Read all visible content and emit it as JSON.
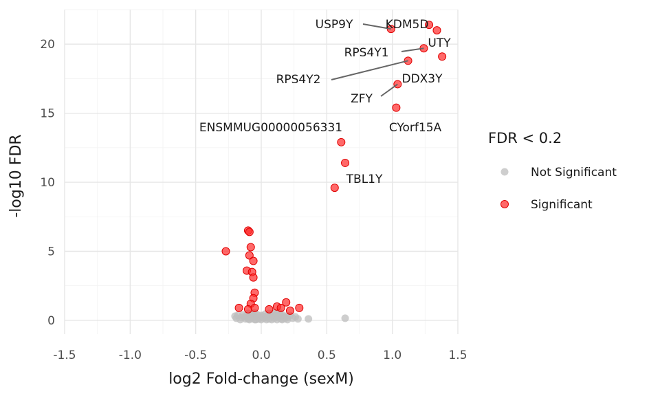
{
  "chart_data": {
    "type": "scatter",
    "title": "",
    "xlabel": "log2 Fold-change (sexM)",
    "ylabel": "-log10 FDR",
    "xlim": [
      -1.5,
      1.5
    ],
    "ylim": [
      -1,
      22.5
    ],
    "x_ticks": [
      -1.5,
      -1.0,
      -0.5,
      0.0,
      0.5,
      1.0,
      1.5
    ],
    "x_tick_labels": [
      "-1.5",
      "-1.0",
      "-0.5",
      "0.0",
      "0.5",
      "1.0",
      "1.5"
    ],
    "y_ticks": [
      0,
      5,
      10,
      15,
      20
    ],
    "y_tick_labels": [
      "0",
      "5",
      "10",
      "15",
      "20"
    ],
    "grid": true,
    "legend": {
      "title": "FDR < 0.2",
      "placement": "right",
      "entries": [
        {
          "label": "Not Significant",
          "color": "#bebebe"
        },
        {
          "label": "Significant",
          "color": "#ff2a2a"
        }
      ]
    },
    "series": [
      {
        "name": "Not Significant",
        "color": "#bebebe",
        "points": [
          [
            -0.2,
            0.3
          ],
          [
            -0.18,
            0.35
          ],
          [
            -0.15,
            0.2
          ],
          [
            -0.14,
            0.4
          ],
          [
            -0.12,
            0.1
          ],
          [
            -0.11,
            0.3
          ],
          [
            -0.1,
            0.5
          ],
          [
            -0.09,
            0.2
          ],
          [
            -0.08,
            0.35
          ],
          [
            -0.07,
            0.15
          ],
          [
            -0.06,
            0.3
          ],
          [
            -0.05,
            0.05
          ],
          [
            -0.04,
            0.25
          ],
          [
            -0.03,
            0.4
          ],
          [
            -0.02,
            0.1
          ],
          [
            -0.01,
            0.2
          ],
          [
            0.0,
            0.05
          ],
          [
            0.01,
            0.3
          ],
          [
            0.02,
            0.15
          ],
          [
            0.03,
            0.45
          ],
          [
            0.04,
            0.2
          ],
          [
            0.05,
            0.35
          ],
          [
            0.06,
            0.1
          ],
          [
            0.07,
            0.4
          ],
          [
            0.08,
            0.25
          ],
          [
            0.09,
            0.5
          ],
          [
            0.1,
            0.15
          ],
          [
            0.11,
            0.3
          ],
          [
            0.12,
            0.45
          ],
          [
            0.13,
            0.2
          ],
          [
            0.14,
            0.35
          ],
          [
            0.15,
            0.1
          ],
          [
            0.16,
            0.4
          ],
          [
            0.17,
            0.25
          ],
          [
            0.18,
            0.15
          ],
          [
            0.19,
            0.3
          ],
          [
            0.2,
            0.2
          ],
          [
            0.22,
            0.35
          ],
          [
            0.24,
            0.15
          ],
          [
            0.26,
            0.25
          ],
          [
            0.28,
            0.1
          ],
          [
            -0.16,
            0.05
          ],
          [
            -0.13,
            0.25
          ],
          [
            -0.1,
            0.1
          ],
          [
            -0.07,
            0.45
          ],
          [
            -0.04,
            0.05
          ],
          [
            0.0,
            0.35
          ],
          [
            0.04,
            0.05
          ],
          [
            0.08,
            0.05
          ],
          [
            0.12,
            0.05
          ],
          [
            0.16,
            0.05
          ],
          [
            0.2,
            0.05
          ],
          [
            -0.19,
            0.15
          ],
          [
            -0.09,
            0.05
          ],
          [
            0.06,
            0.5
          ],
          [
            0.1,
            0.55
          ],
          [
            0.14,
            0.55
          ],
          [
            -0.05,
            0.55
          ],
          [
            0.36,
            0.1
          ],
          [
            0.64,
            0.15
          ]
        ]
      },
      {
        "name": "Significant",
        "color": "#ff2a2a",
        "points": [
          [
            0.99,
            21.1
          ],
          [
            1.28,
            21.4
          ],
          [
            1.34,
            21.0
          ],
          [
            1.24,
            19.7
          ],
          [
            1.38,
            19.1
          ],
          [
            1.12,
            18.8
          ],
          [
            1.04,
            17.1
          ],
          [
            1.03,
            15.4
          ],
          [
            0.61,
            12.9
          ],
          [
            0.64,
            11.4
          ],
          [
            0.56,
            9.6
          ],
          [
            -0.27,
            5.0
          ],
          [
            -0.1,
            6.5
          ],
          [
            -0.09,
            6.4
          ],
          [
            -0.08,
            5.3
          ],
          [
            -0.09,
            4.7
          ],
          [
            -0.06,
            4.3
          ],
          [
            -0.11,
            3.6
          ],
          [
            -0.07,
            3.5
          ],
          [
            -0.06,
            3.1
          ],
          [
            -0.05,
            2.0
          ],
          [
            -0.06,
            1.6
          ],
          [
            -0.08,
            1.2
          ],
          [
            -0.17,
            0.9
          ],
          [
            -0.1,
            0.8
          ],
          [
            -0.05,
            0.9
          ],
          [
            0.19,
            1.3
          ],
          [
            0.12,
            1.0
          ],
          [
            0.15,
            0.9
          ],
          [
            0.29,
            0.9
          ],
          [
            0.22,
            0.7
          ],
          [
            0.06,
            0.8
          ]
        ]
      }
    ],
    "annotations": [
      {
        "label": "USP9Y",
        "x": 0.99,
        "y": 21.1
      },
      {
        "label": "KDM5D",
        "x": 1.28,
        "y": 21.4
      },
      {
        "label": "UTY",
        "x": 1.34,
        "y": 21.0
      },
      {
        "label": "RPS4Y1",
        "x": 1.24,
        "y": 19.7
      },
      {
        "label": "RPS4Y2",
        "x": 1.12,
        "y": 18.8
      },
      {
        "label": "DDX3Y",
        "x": 1.38,
        "y": 19.1
      },
      {
        "label": "ZFY",
        "x": 1.04,
        "y": 17.1
      },
      {
        "label": "CYorf15A",
        "x": 1.03,
        "y": 15.4
      },
      {
        "label": "ENSMMUG00000056331",
        "x": 0.61,
        "y": 12.9
      },
      {
        "label": "TBL1Y",
        "x": 0.56,
        "y": 9.6
      }
    ]
  }
}
